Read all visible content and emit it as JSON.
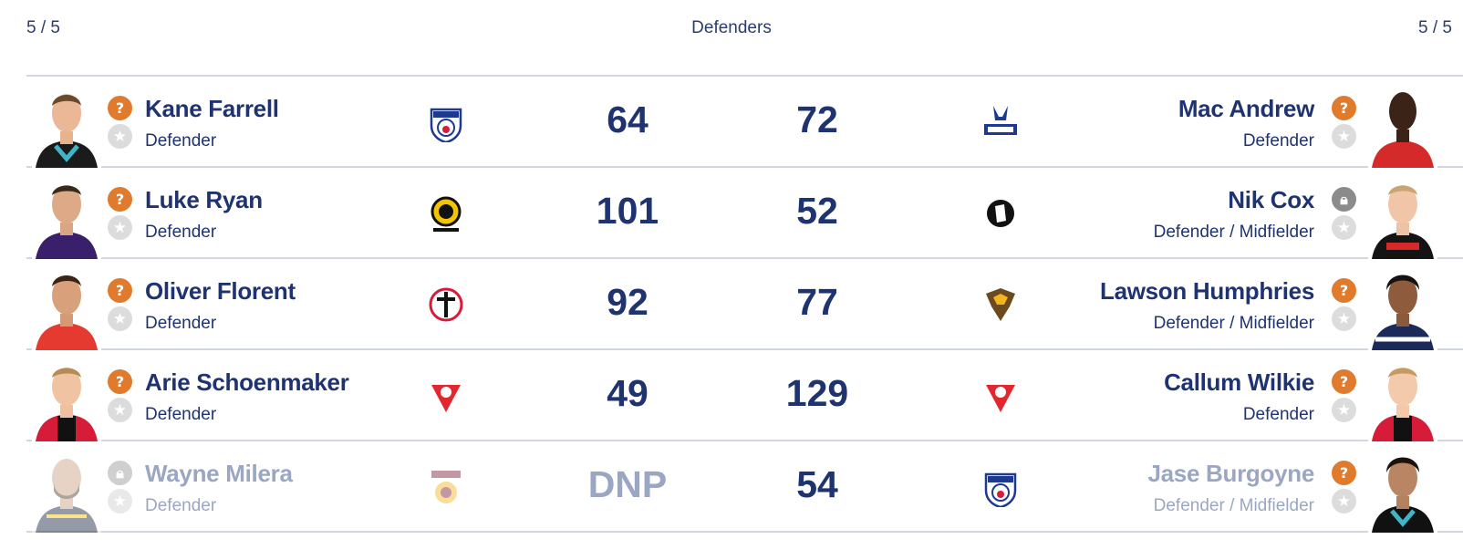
{
  "header": {
    "left_count": "5 / 5",
    "title": "Defenders",
    "right_count": "5 / 5"
  },
  "rows": [
    {
      "left": {
        "name": "Kane Farrell",
        "position": "Defender",
        "score": "64",
        "status": "question",
        "club": "Western Bulldogs"
      },
      "right": {
        "name": "Mac Andrew",
        "position": "Defender",
        "score": "72",
        "status": "question",
        "club": "North Melbourne"
      }
    },
    {
      "left": {
        "name": "Luke Ryan",
        "position": "Defender",
        "score": "101",
        "status": "question",
        "club": "Richmond"
      },
      "right": {
        "name": "Nik Cox",
        "position": "Defender / Midfielder",
        "score": "52",
        "status": "locked",
        "club": "Collingwood"
      }
    },
    {
      "left": {
        "name": "Oliver Florent",
        "position": "Defender",
        "score": "92",
        "status": "question",
        "club": "St Kilda"
      },
      "right": {
        "name": "Lawson Humphries",
        "position": "Defender / Midfielder",
        "score": "77",
        "status": "question",
        "club": "Hawthorn"
      }
    },
    {
      "left": {
        "name": "Arie Schoenmaker",
        "position": "Defender",
        "score": "49",
        "status": "question",
        "club": "Sydney"
      },
      "right": {
        "name": "Callum Wilkie",
        "position": "Defender",
        "score": "129",
        "status": "question",
        "club": "Sydney"
      }
    },
    {
      "left": {
        "name": "Wayne Milera",
        "position": "Defender",
        "score": "DNP",
        "status": "locked",
        "club": "Brisbane Lions"
      },
      "right": {
        "name": "Jase Burgoyne",
        "position": "Defender / Midfielder",
        "score": "54",
        "status": "question",
        "club": "Western Bulldogs"
      }
    }
  ],
  "colors": {
    "text": "#1e3370",
    "question_badge": "#e07a2c",
    "lock_badge": "#8b8b8b",
    "divider": "#d2d6de",
    "dnp_text": "#9ba6c2"
  }
}
